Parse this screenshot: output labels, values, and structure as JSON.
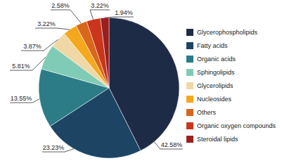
{
  "chart_data": {
    "type": "pie",
    "categories": [
      "Glycerophospholipids",
      "Fatty acids",
      "Organic acids",
      "Sphingolipids",
      "Glycerolipids",
      "Nucleosides",
      "Others",
      "Organic oxygen compounds",
      "Steroidal lipids"
    ],
    "values": [
      42.58,
      23.23,
      13.55,
      5.81,
      3.87,
      3.22,
      2.58,
      3.22,
      1.94
    ],
    "value_labels": [
      "42.58%",
      "23.23%",
      "13.55%",
      "5.81%",
      "3.87%",
      "3.22%",
      "2.58%",
      "3.22%",
      "1.94%"
    ],
    "colors": [
      "#1e2b47",
      "#1d4463",
      "#2b7c86",
      "#80cbb5",
      "#f0d8a6",
      "#f4a81d",
      "#d8661b",
      "#c9361b",
      "#9a1f1f"
    ],
    "data_labels": true,
    "legend": "right"
  }
}
